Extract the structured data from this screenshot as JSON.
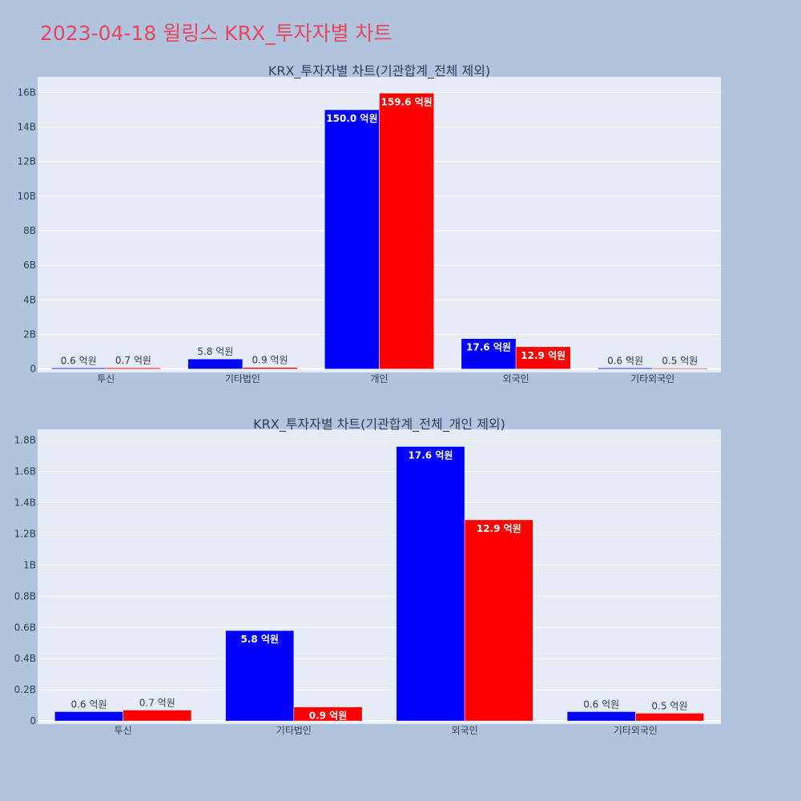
{
  "page": {
    "title": "2023-04-18 윌링스 KRX_투자자별 차트"
  },
  "colors": {
    "background": "#b0c4de",
    "plot_bg": "#e5ecf6",
    "buy": "#0000ff",
    "sell": "#ff0000",
    "title": "#e8455f",
    "text": "#2a3f5f",
    "grid": "#ffffff"
  },
  "chart_data": [
    {
      "type": "bar",
      "title": "KRX_투자자별 차트(기관합계_전체 제외)",
      "categories": [
        "투신",
        "기타법인",
        "개인",
        "외국인",
        "기타외국인"
      ],
      "series": [
        {
          "values": [
            0.06,
            0.58,
            15.0,
            1.76,
            0.06
          ],
          "labels": [
            "0.6 억원",
            "5.8 억원",
            "150.0 억원",
            "17.6 억원",
            "0.6 억원"
          ],
          "color": "#0000ff"
        },
        {
          "values": [
            0.07,
            0.09,
            15.96,
            1.29,
            0.05
          ],
          "labels": [
            "0.7 억원",
            "0.9 억원",
            "159.6 억원",
            "12.9 억원",
            "0.5 억원"
          ],
          "color": "#ff0000"
        }
      ],
      "y_unit": "B",
      "ylim": [
        -0.2,
        16.9
      ],
      "yticks": [
        0,
        2,
        4,
        6,
        8,
        10,
        12,
        14,
        16
      ],
      "ytick_labels": [
        "0",
        "2B",
        "4B",
        "6B",
        "8B",
        "10B",
        "12B",
        "14B",
        "16B"
      ],
      "grid": true,
      "legend": "none"
    },
    {
      "type": "bar",
      "title": "KRX_투자자별 차트(기관합계_전체_개인 제외)",
      "categories": [
        "투신",
        "기타법인",
        "외국인",
        "기타외국인"
      ],
      "series": [
        {
          "values": [
            0.06,
            0.58,
            1.76,
            0.06
          ],
          "labels": [
            "0.6 억원",
            "5.8 억원",
            "17.6 억원",
            "0.6 억원"
          ],
          "color": "#0000ff"
        },
        {
          "values": [
            0.07,
            0.09,
            1.29,
            0.05
          ],
          "labels": [
            "0.7 억원",
            "0.9 억원",
            "12.9 억원",
            "0.5 억원"
          ],
          "color": "#ff0000"
        }
      ],
      "y_unit": "B",
      "ylim": [
        -0.02,
        1.87
      ],
      "yticks": [
        0,
        0.2,
        0.4,
        0.6,
        0.8,
        1.0,
        1.2,
        1.4,
        1.6,
        1.8
      ],
      "ytick_labels": [
        "0",
        "0.2B",
        "0.4B",
        "0.6B",
        "0.8B",
        "1B",
        "1.2B",
        "1.4B",
        "1.6B",
        "1.8B"
      ],
      "grid": true,
      "legend": "none"
    }
  ]
}
